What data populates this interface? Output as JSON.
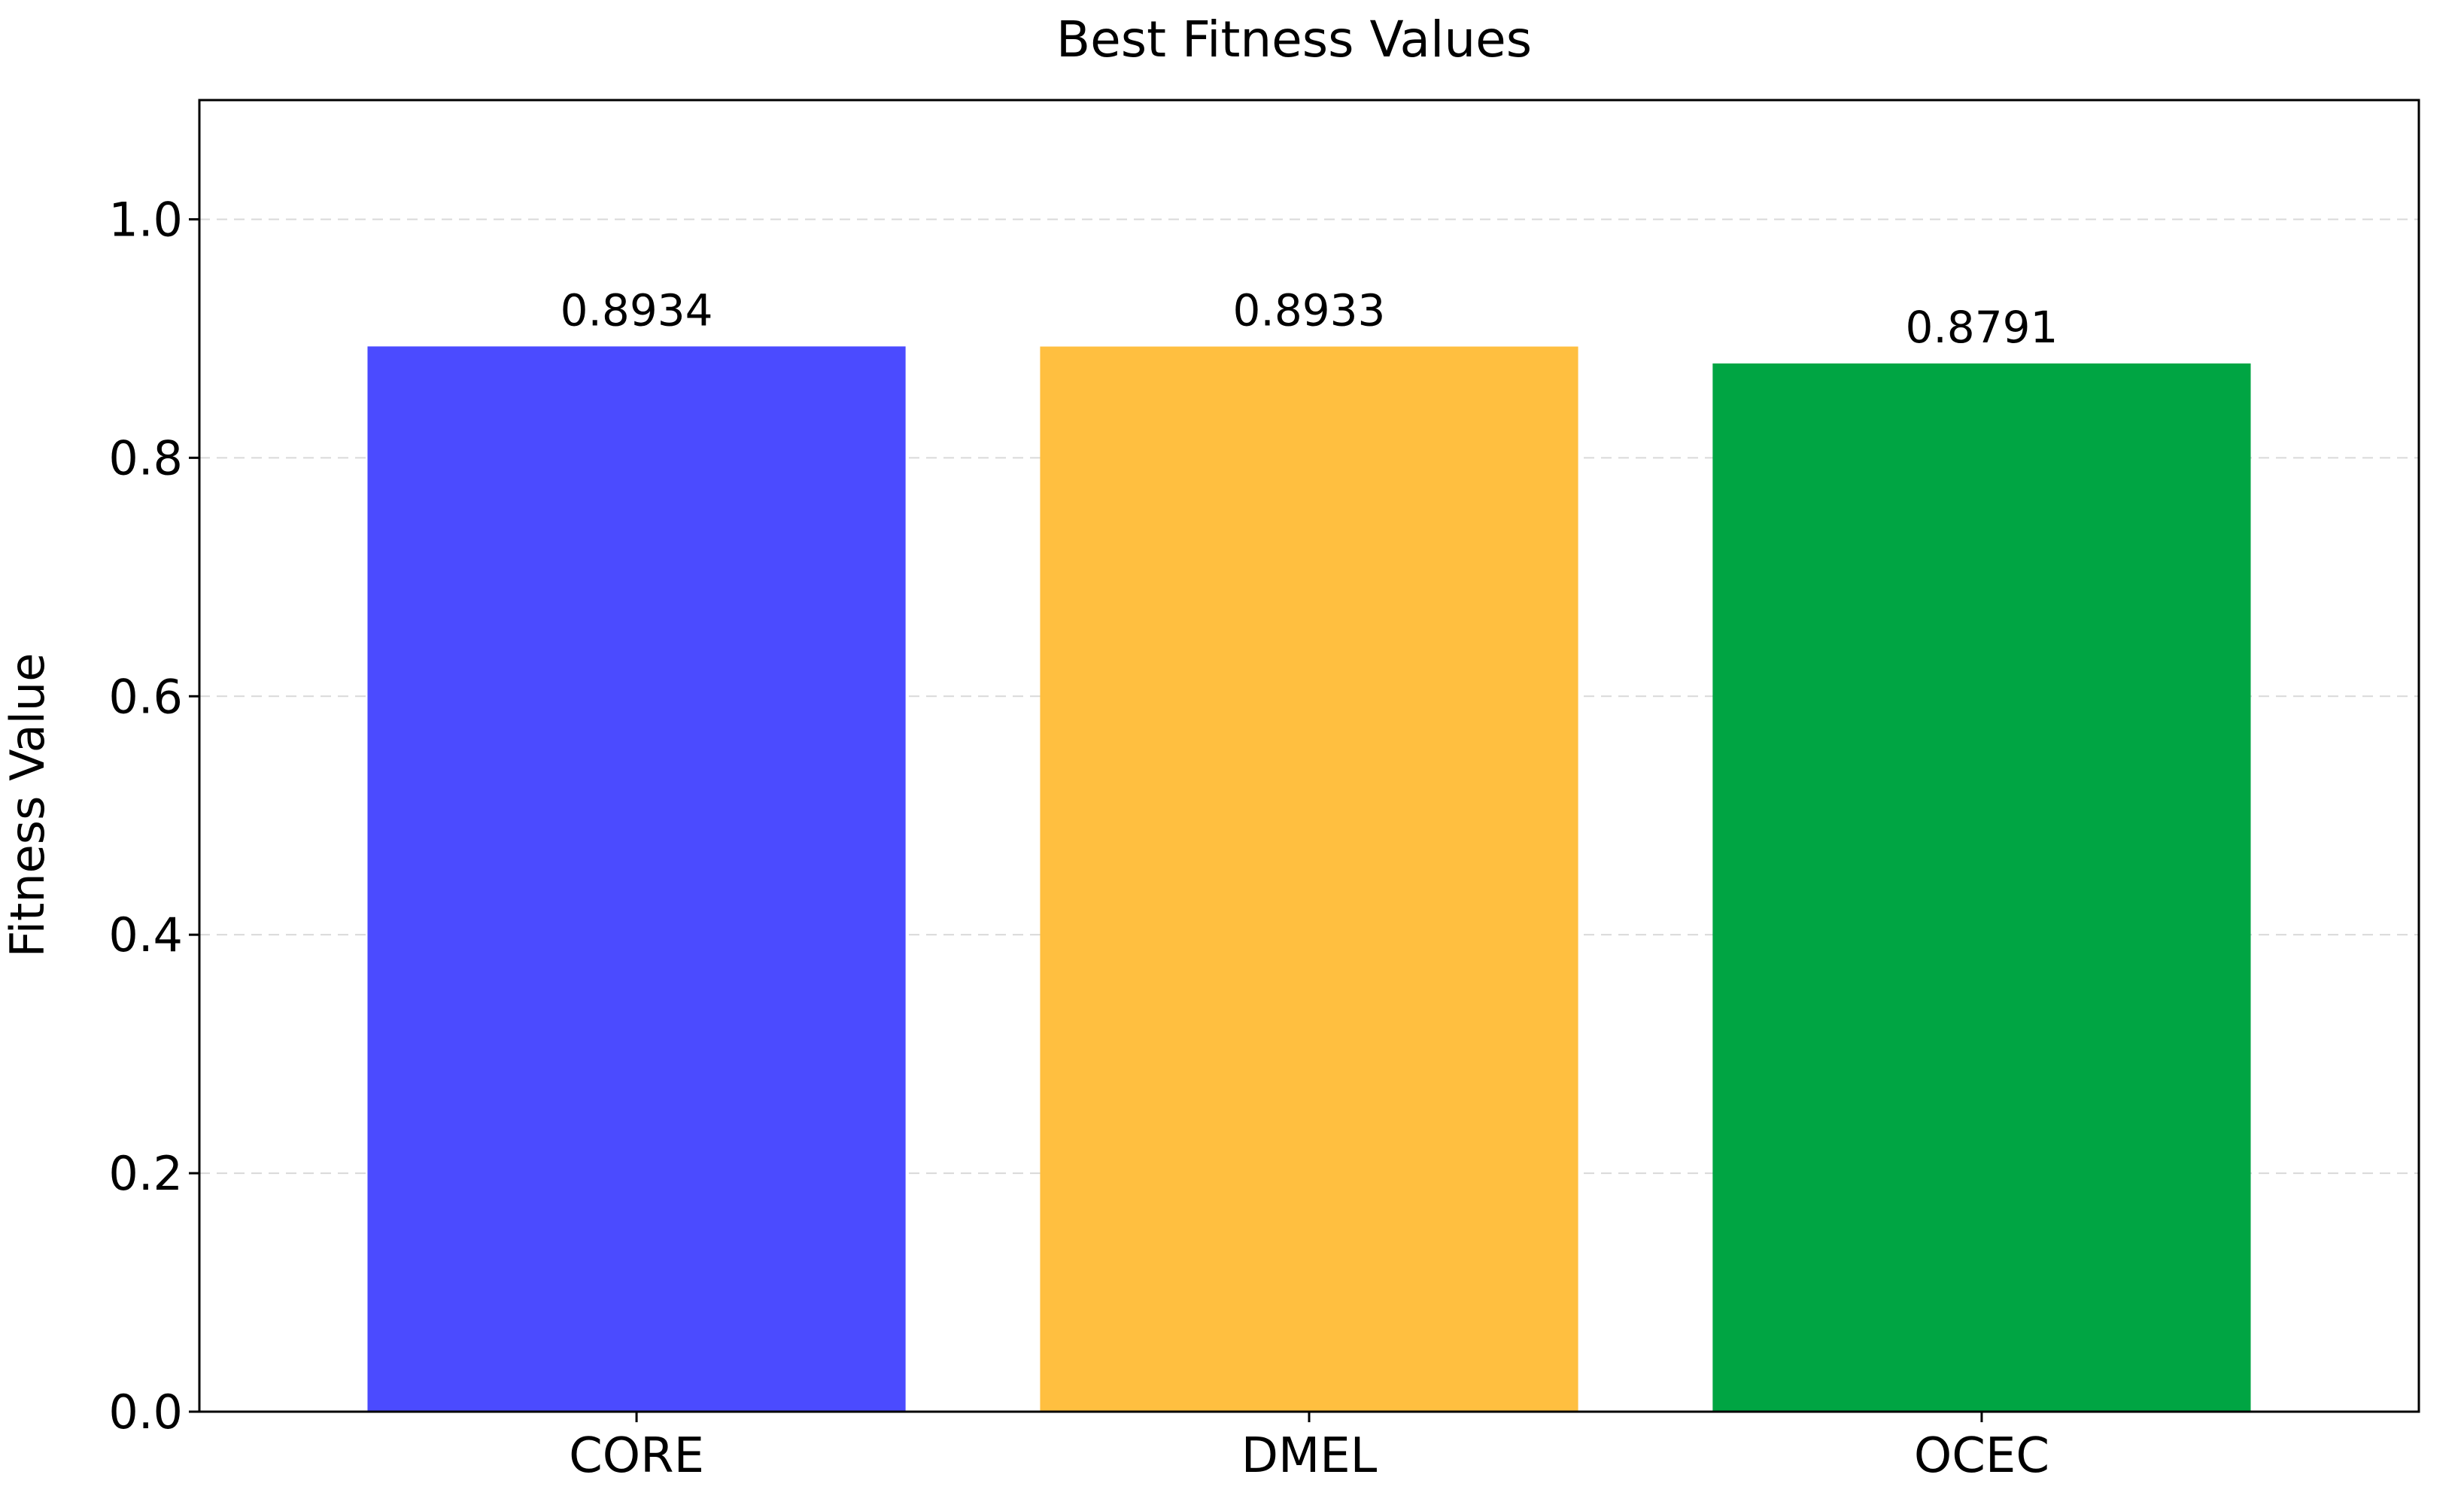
{
  "chart_data": {
    "type": "bar",
    "title": "Best Fitness Values",
    "xlabel": "",
    "ylabel": "Fitness Value",
    "categories": [
      "CORE",
      "DMEL",
      "OCEC"
    ],
    "values": [
      0.8934,
      0.8933,
      0.8791
    ],
    "value_labels": [
      "0.8934",
      "0.8933",
      "0.8791"
    ],
    "colors": [
      "#4b4bff",
      "#ffbf40",
      "#00a543"
    ],
    "ylim": [
      0,
      1.1
    ],
    "yticks": [
      0.0,
      0.2,
      0.4,
      0.6,
      0.8,
      1.0
    ],
    "ytick_labels": [
      "0.0",
      "0.2",
      "0.4",
      "0.6",
      "0.8",
      "1.0"
    ],
    "grid": "y-dashed",
    "legend": "none"
  }
}
